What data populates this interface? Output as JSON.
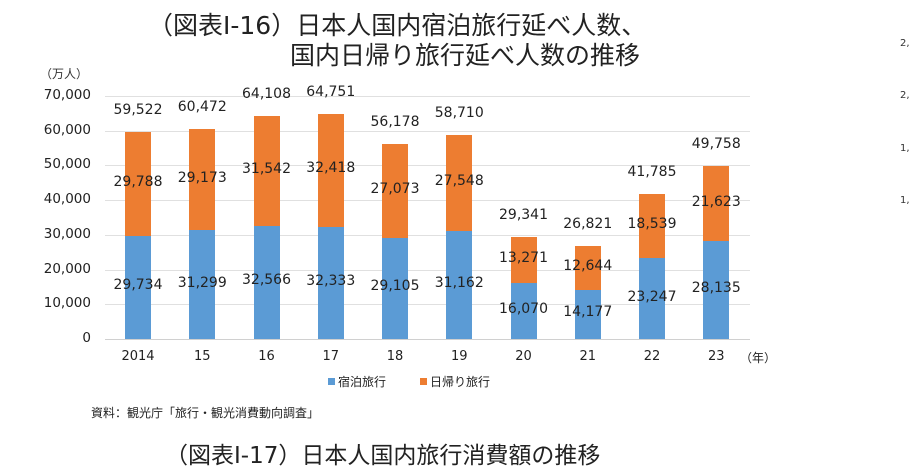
{
  "header": {
    "title_line1": "（図表Ⅰ-16）日本人国内宿泊旅行延べ人数、",
    "title_line2": "国内日帰り旅行延べ人数の推移"
  },
  "chart_data": {
    "type": "bar",
    "stacked": true,
    "title": "（図表Ⅰ-16）日本人国内宿泊旅行延べ人数、国内日帰り旅行延べ人数の推移",
    "ylabel": "（万人）",
    "xlabel": "（年）",
    "ylim": [
      0,
      70000
    ],
    "yticks": [
      "0",
      "10,000",
      "20,000",
      "30,000",
      "40,000",
      "50,000",
      "60,000",
      "70,000"
    ],
    "grid": true,
    "legend_position": "bottom",
    "categories": [
      "2014",
      "15",
      "16",
      "17",
      "18",
      "19",
      "20",
      "21",
      "22",
      "23"
    ],
    "series": [
      {
        "name": "宿泊旅行",
        "color": "#5b9bd5",
        "values": [
          29734,
          31299,
          32566,
          32333,
          29105,
          31162,
          16070,
          14177,
          23247,
          28135
        ],
        "labels": [
          "29,734",
          "31,299",
          "32,566",
          "32,333",
          "29,105",
          "31,162",
          "16,070",
          "14,177",
          "23,247",
          "28,135"
        ]
      },
      {
        "name": "日帰り旅行",
        "color": "#ed7d31",
        "values": [
          29788,
          29173,
          31542,
          32418,
          27073,
          27548,
          13271,
          12644,
          18539,
          21623
        ],
        "labels": [
          "29,788",
          "29,173",
          "31,542",
          "32,418",
          "27,073",
          "27,548",
          "13,271",
          "12,644",
          "18,539",
          "21,623"
        ]
      }
    ],
    "totals": [
      59522,
      60472,
      64108,
      64751,
      56178,
      58710,
      29341,
      26821,
      41785,
      49758
    ],
    "total_labels": [
      "59,522",
      "60,472",
      "64,108",
      "64,751",
      "56,178",
      "58,710",
      "29,341",
      "26,821",
      "41,785",
      "49,758"
    ]
  },
  "legend": {
    "items": [
      {
        "label": "宿泊旅行",
        "color": "#5b9bd5"
      },
      {
        "label": "日帰り旅行",
        "color": "#ed7d31"
      }
    ]
  },
  "source": "資料：観光庁「旅行・観光消費動向調査」",
  "next_figure_title": "（図表Ⅰ-17）日本人国内旅行消費額の推移",
  "right_edge_fragments": [
    "2,",
    "2,",
    "1,",
    "1,"
  ]
}
